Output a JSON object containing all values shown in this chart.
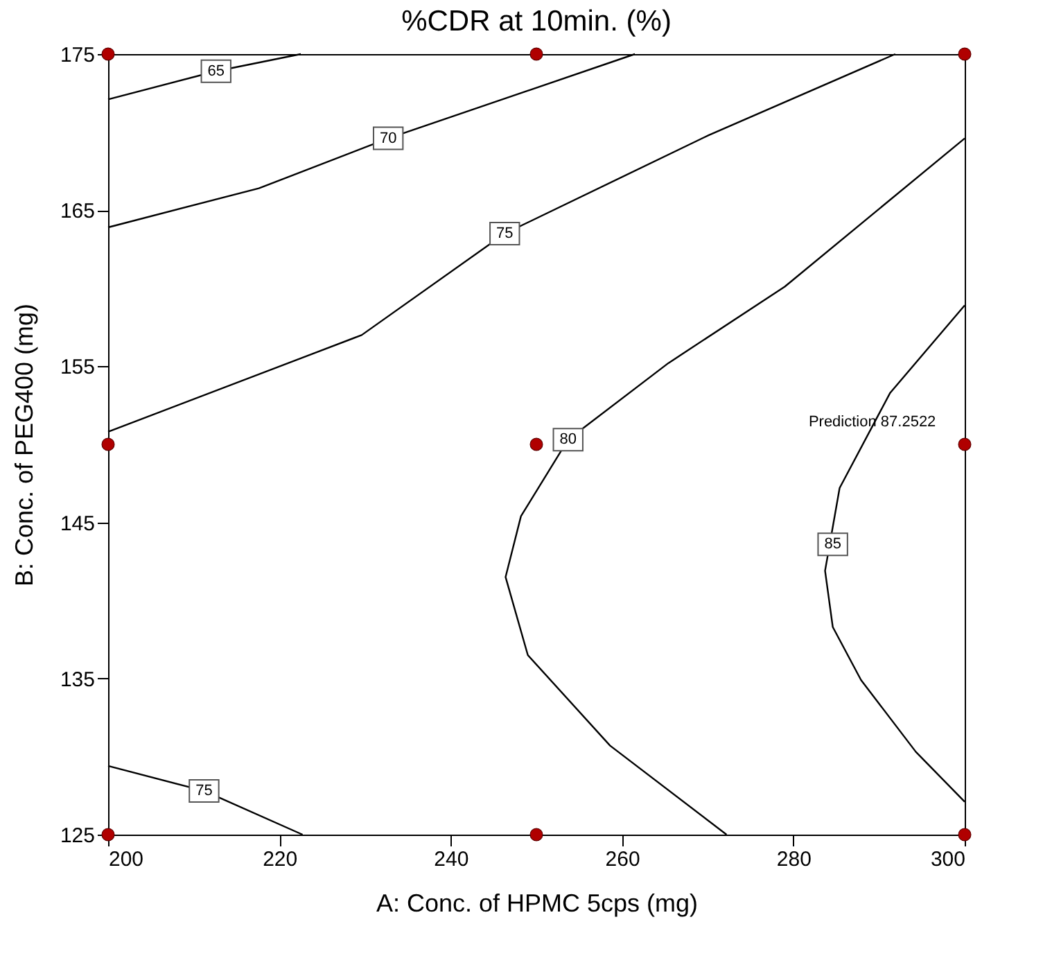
{
  "chart_data": {
    "type": "line",
    "title": "%CDR at 10min. (%)",
    "xlabel": "A: Conc. of HPMC 5cps (mg)",
    "ylabel": "B: Conc. of PEG400 (mg)",
    "xlim": [
      200,
      300
    ],
    "ylim": [
      125,
      175
    ],
    "xticks": [
      200,
      220,
      240,
      260,
      280,
      300
    ],
    "yticks": [
      125,
      135,
      145,
      155,
      165,
      175
    ],
    "series": [
      {
        "color": "#000000",
        "line_style": "solid",
        "x": [
          200,
          212.6,
          222.5
        ],
        "values": [
          172.1,
          173.9,
          175
        ]
      },
      {
        "color": "#000000",
        "line_style": "solid",
        "x": [
          200,
          217.6,
          232.7,
          261.5
        ],
        "values": [
          163.9,
          166.4,
          169.6,
          175
        ]
      },
      {
        "color": "#000000",
        "line_style": "solid",
        "x": [
          200,
          229.6,
          246.3,
          270.1,
          291.9
        ],
        "values": [
          150.8,
          157.0,
          163.5,
          169.8,
          175
        ]
      },
      {
        "color": "#000000",
        "line_style": "solid",
        "x": [
          200,
          211.2,
          222.7
        ],
        "values": [
          129.4,
          127.8,
          125
        ]
      },
      {
        "color": "#000000",
        "line_style": "solid",
        "x": [
          300,
          279.0,
          265.4,
          253.7,
          248.2,
          246.4,
          249.0,
          258.6,
          272.2
        ],
        "values": [
          169.6,
          160.1,
          155.2,
          150.3,
          145.4,
          141.5,
          136.5,
          130.7,
          125
        ]
      },
      {
        "color": "#000000",
        "line_style": "solid",
        "x": [
          300,
          291.3,
          285.4,
          283.7,
          284.6,
          287.9,
          294.3,
          300
        ],
        "values": [
          158.9,
          153.3,
          147.2,
          141.9,
          138.3,
          134.9,
          130.3,
          127.1
        ]
      },
      {
        "type": "scatter",
        "color": "#b00000",
        "marker": "circle",
        "x": [
          200,
          250,
          300,
          200,
          250,
          300,
          200,
          250,
          300
        ],
        "values": [
          175,
          175,
          175,
          150,
          150,
          150,
          125,
          125,
          125
        ]
      }
    ],
    "annotations": [
      {
        "text": "65",
        "x": 212.6,
        "y": 173.9
      },
      {
        "text": "70",
        "x": 232.7,
        "y": 169.6
      },
      {
        "text": "75",
        "x": 246.3,
        "y": 163.5
      },
      {
        "text": "80",
        "x": 253.7,
        "y": 150.3
      },
      {
        "text": "85",
        "x": 284.6,
        "y": 143.6
      },
      {
        "text": "75",
        "x": 211.2,
        "y": 127.8
      },
      {
        "text": "Prediction  87.2522",
        "x": 300,
        "y": 150
      }
    ]
  }
}
